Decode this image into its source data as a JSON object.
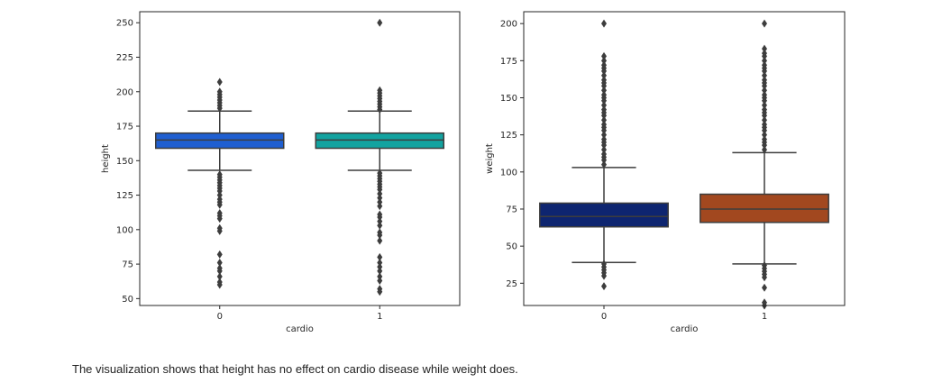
{
  "caption": "The visualization shows that height has no effect on cardio disease while weight does.",
  "chart_data": [
    {
      "type": "box",
      "xlabel": "cardio",
      "ylabel": "height",
      "categories": [
        "0",
        "1"
      ],
      "ylim": [
        45,
        258
      ],
      "yticks": [
        50,
        75,
        100,
        125,
        150,
        175,
        200,
        225,
        250
      ],
      "grid": false,
      "boxes": [
        {
          "category": "0",
          "color": "#1f5fd1",
          "q1": 159,
          "median": 165,
          "q3": 170,
          "whisker_low": 143,
          "whisker_high": 186,
          "outliers": [
            207,
            200,
            198,
            196,
            194,
            192,
            190,
            188,
            140,
            138,
            136,
            134,
            132,
            130,
            128,
            125,
            122,
            120,
            118,
            112,
            110,
            108,
            101,
            99,
            82,
            76,
            72,
            70,
            66,
            62,
            60
          ]
        },
        {
          "category": "1",
          "color": "#12a3a0",
          "q1": 159,
          "median": 165,
          "q3": 170,
          "whisker_low": 143,
          "whisker_high": 186,
          "outliers": [
            250,
            201,
            199,
            197,
            195,
            193,
            191,
            189,
            187,
            141,
            139,
            137,
            135,
            133,
            131,
            129,
            126,
            123,
            120,
            117,
            111,
            109,
            106,
            103,
            98,
            96,
            92,
            80,
            76,
            73,
            70,
            66,
            63,
            57,
            55
          ]
        }
      ]
    },
    {
      "type": "box",
      "xlabel": "cardio",
      "ylabel": "weight",
      "categories": [
        "0",
        "1"
      ],
      "ylim": [
        10,
        208
      ],
      "yticks": [
        25,
        50,
        75,
        100,
        125,
        150,
        175,
        200
      ],
      "grid": false,
      "boxes": [
        {
          "category": "0",
          "color": "#0e2570",
          "q1": 63,
          "median": 70,
          "q3": 79,
          "whisker_low": 39,
          "whisker_high": 103,
          "outliers": [
            200,
            178,
            175,
            172,
            170,
            168,
            165,
            162,
            160,
            158,
            155,
            152,
            150,
            148,
            145,
            142,
            140,
            138,
            135,
            132,
            130,
            128,
            125,
            122,
            120,
            118,
            115,
            112,
            110,
            108,
            105,
            38,
            36,
            34,
            32,
            30,
            23
          ]
        },
        {
          "category": "1",
          "color": "#a2481f",
          "q1": 66,
          "median": 75,
          "q3": 85,
          "whisker_low": 38,
          "whisker_high": 113,
          "outliers": [
            200,
            183,
            180,
            178,
            175,
            172,
            170,
            168,
            165,
            162,
            160,
            158,
            155,
            152,
            150,
            148,
            145,
            142,
            140,
            138,
            135,
            132,
            130,
            128,
            125,
            122,
            120,
            118,
            115,
            37,
            35,
            33,
            31,
            29,
            22,
            12,
            10
          ]
        }
      ]
    }
  ]
}
